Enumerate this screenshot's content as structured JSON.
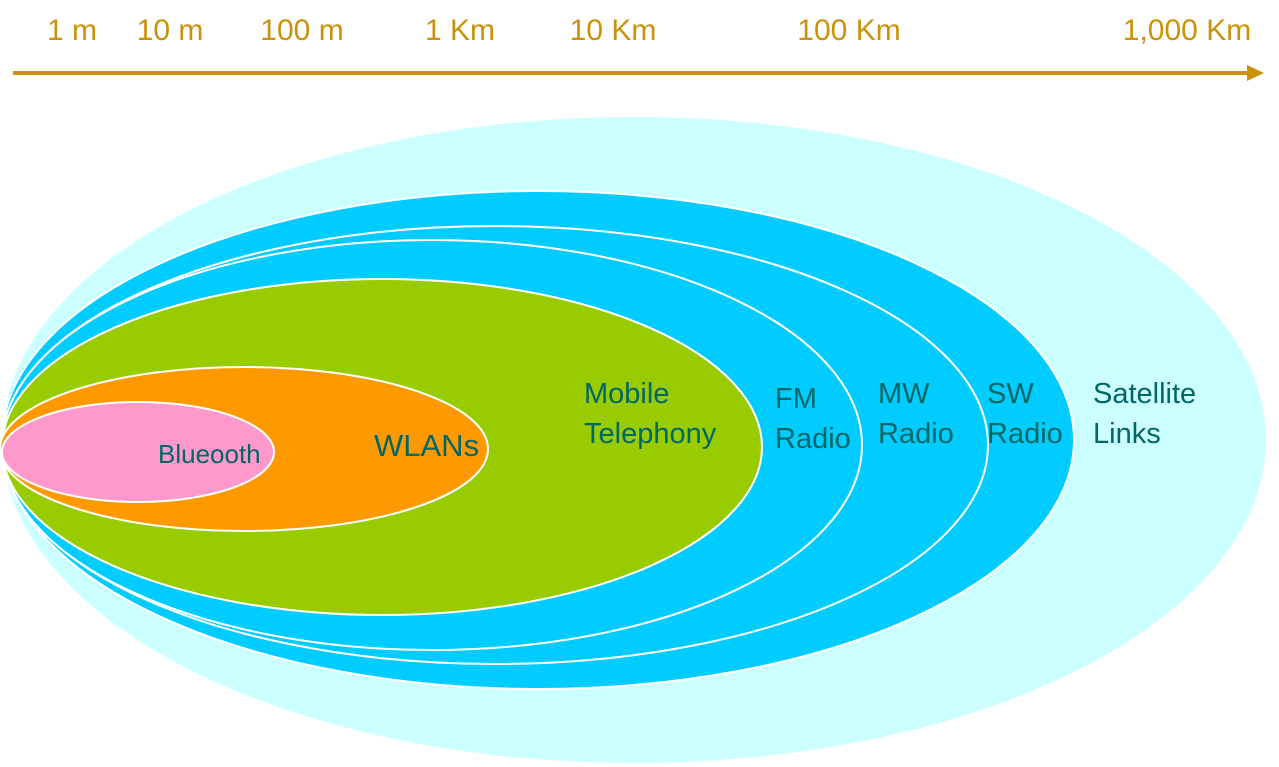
{
  "scale": {
    "ticks": [
      "1 m",
      "10 m",
      "100 m",
      "1 Km",
      "10 Km",
      "100 Km",
      "1,000 Km"
    ],
    "color": "#C9920A"
  },
  "ranges": [
    {
      "key": "satellite",
      "lines": [
        "Satellite",
        "Links"
      ],
      "fill": "#CCFFFF"
    },
    {
      "key": "sw-radio",
      "lines": [
        "SW",
        "Radio"
      ],
      "fill": "#00CCFF"
    },
    {
      "key": "mw-radio",
      "lines": [
        "MW",
        "Radio"
      ],
      "fill": "#00CCFF"
    },
    {
      "key": "fm-radio",
      "lines": [
        "FM",
        "Radio"
      ],
      "fill": "#00CCFF"
    },
    {
      "key": "mobile-telephony",
      "lines": [
        "Mobile",
        "Telephony"
      ],
      "fill": "#99CC00"
    },
    {
      "key": "wlans",
      "lines": [
        "WLANs"
      ],
      "fill": "#FF9900"
    },
    {
      "key": "bluetooth",
      "lines": [
        "Blueooth"
      ],
      "fill": "#FF99CC"
    }
  ],
  "label_color": "#006666"
}
